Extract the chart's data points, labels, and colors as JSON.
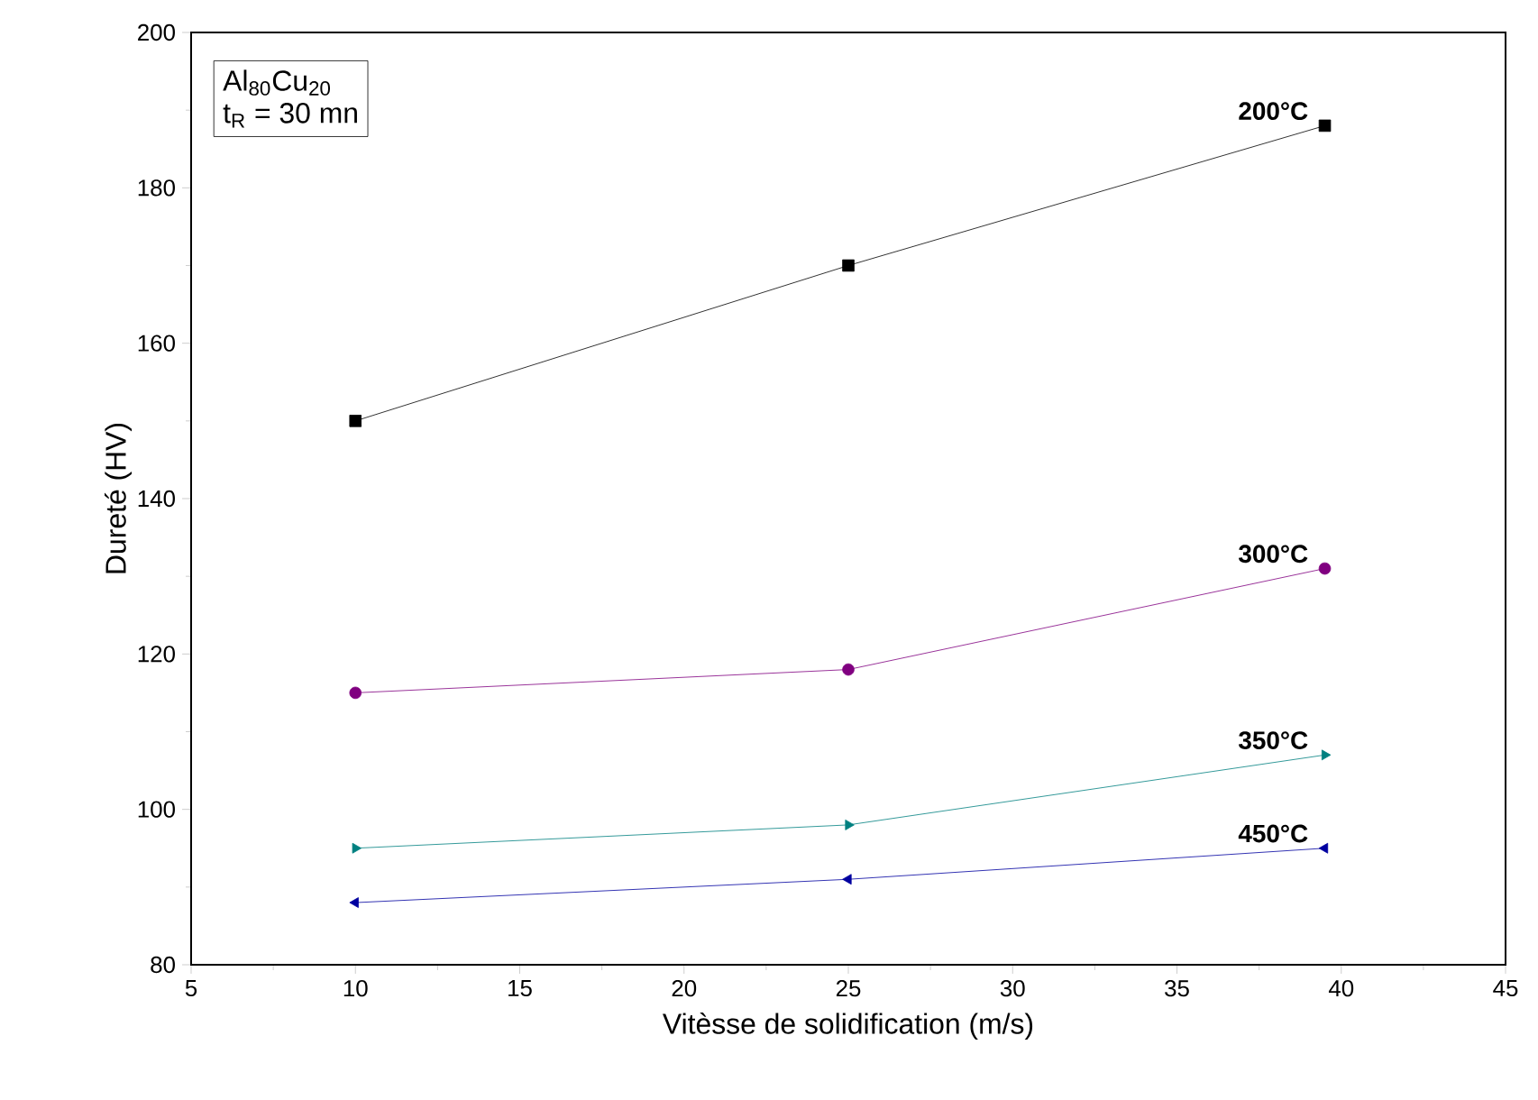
{
  "chart_data": {
    "type": "line",
    "xlabel": "Vitèsse de solidification (m/s)",
    "ylabel": "Dureté (HV)",
    "annotations": [
      "Al$_{80}$Cu$_{20}$",
      "t$_{R}$ = 30 mn"
    ],
    "x": [
      10,
      25,
      39.5
    ],
    "series": [
      {
        "name": "200°C",
        "color": "#000000",
        "marker": "square",
        "values": [
          150,
          170,
          188
        ]
      },
      {
        "name": "300°C",
        "color": "#800080",
        "marker": "circle",
        "values": [
          115,
          118,
          131
        ]
      },
      {
        "name": "350°C",
        "color": "#008080",
        "marker": "triangle-right",
        "values": [
          95,
          98,
          107
        ]
      },
      {
        "name": "450°C",
        "color": "#0000a0",
        "marker": "triangle-left",
        "values": [
          88,
          91,
          95
        ]
      }
    ],
    "xlim": [
      5,
      45
    ],
    "ylim": [
      80,
      200
    ],
    "xticks": [
      5,
      10,
      15,
      20,
      25,
      30,
      35,
      40,
      45
    ],
    "yticks": [
      80,
      100,
      120,
      140,
      160,
      180,
      200
    ],
    "grid": false,
    "legend": false,
    "line_style": "solid"
  }
}
